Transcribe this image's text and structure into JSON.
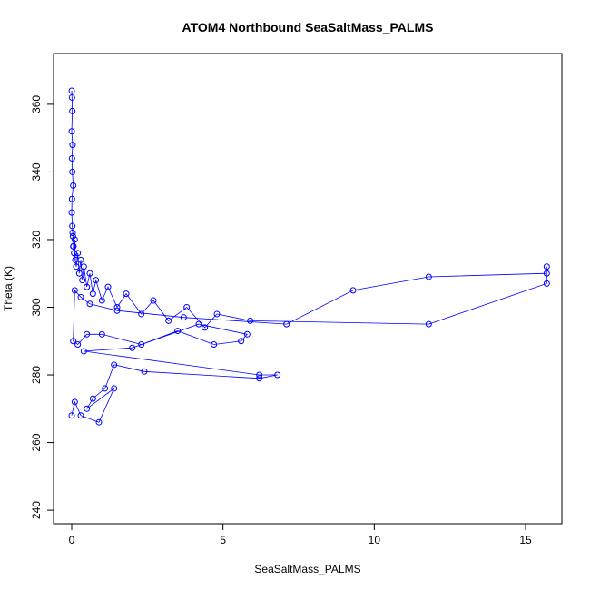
{
  "chart_data": {
    "type": "scatter",
    "title": "ATOM4 Northbound SeaSaltMass_PALMS",
    "xlabel": "SeaSaltMass_PALMS",
    "ylabel": "Theta (K)",
    "xlim": [
      -0.6,
      16.2
    ],
    "ylim": [
      236,
      375
    ],
    "xticks": [
      0,
      5,
      10,
      15
    ],
    "yticks": [
      240,
      260,
      280,
      300,
      320,
      340,
      360
    ],
    "grid": false,
    "legend": "none",
    "series_color": "#0000ff",
    "marker": "open-circle",
    "connected": true,
    "series": [
      {
        "x": [
          0.0,
          0.01,
          0.02,
          0.0,
          0.03,
          0.01,
          0.02,
          0.05,
          0.01,
          0.0,
          0.02,
          0.04,
          0.06,
          0.03,
          0.08,
          0.1,
          0.12,
          0.05,
          0.15,
          0.2,
          0.25,
          0.3,
          0.35,
          0.4,
          0.5,
          0.6,
          0.7,
          0.8,
          1.0,
          1.2,
          1.5,
          1.8,
          2.3,
          2.7,
          3.2,
          3.8,
          4.4,
          4.8,
          5.9,
          11.8,
          15.7,
          15.7,
          15.7,
          11.8,
          9.3,
          7.1,
          3.7,
          1.5,
          0.6,
          0.3,
          0.1,
          0.05,
          0.2,
          0.5,
          1.0,
          2.3,
          3.5,
          4.7,
          5.6,
          5.8,
          4.2,
          2.0,
          0.4,
          6.2,
          6.8,
          6.2,
          2.4,
          1.4,
          1.1,
          0.7,
          0.5,
          1.4,
          0.9,
          0.3,
          0.1,
          0.0
        ],
        "y": [
          364,
          362,
          358,
          352,
          348,
          344,
          340,
          336,
          332,
          328,
          324,
          321,
          318,
          322,
          316,
          320,
          314,
          318,
          312,
          316,
          310,
          314,
          308,
          312,
          306,
          310,
          304,
          308,
          302,
          306,
          300,
          304,
          298,
          302,
          296,
          300,
          294,
          298,
          296,
          295,
          307,
          312,
          310,
          309,
          305,
          295,
          297,
          299,
          301,
          303,
          305,
          290,
          289,
          292,
          292,
          289,
          293,
          289,
          290,
          292,
          295,
          288,
          287,
          280,
          280,
          279,
          281,
          283,
          276,
          273,
          270,
          276,
          266,
          268,
          272,
          268
        ]
      }
    ]
  }
}
